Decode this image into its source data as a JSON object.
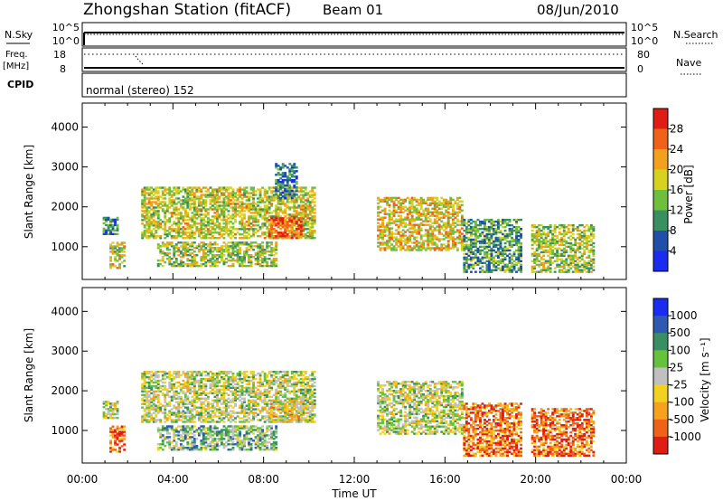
{
  "header": {
    "station": "Zhongshan Station (fitACF)",
    "beam": "Beam 01",
    "date": "08/Jun/2010"
  },
  "strips": {
    "nsky": {
      "label": "N.Sky",
      "ticks": [
        "10^5",
        "10^0"
      ],
      "right_label": "N.Search",
      "right_ticks": [
        "10^5",
        "10^0"
      ]
    },
    "freq": {
      "label_1": "Freq.",
      "label_2": "[MHz]",
      "ticks": [
        "18",
        "8"
      ],
      "right_label": "Nave",
      "right_ticks": [
        "80",
        "0"
      ]
    },
    "cpid": {
      "label": "CPID",
      "text": "normal (stereo) 152"
    }
  },
  "colors": {
    "power": [
      "#1a2cf0",
      "#1f4fa8",
      "#3a8f62",
      "#6fbf3f",
      "#d6d21e",
      "#f2a11c",
      "#f0621a",
      "#e01d14"
    ],
    "velocity": [
      "#e01d14",
      "#f0621a",
      "#f6a21c",
      "#f2d21e",
      "#c0c0c0",
      "#66c23a",
      "#3a8f62",
      "#2f58b0",
      "#1a2cf0"
    ]
  },
  "chart_data": [
    {
      "type": "heatmap",
      "title": "Power",
      "ylabel": "Slant Range [km]",
      "xlabel": "",
      "xlim": [
        "00:00",
        "00:00"
      ],
      "ylim": [
        180,
        4600
      ],
      "x_ticks": [
        "00:00",
        "04:00",
        "08:00",
        "12:00",
        "16:00",
        "20:00",
        "00:00"
      ],
      "y_ticks": [
        "1000",
        "2000",
        "3000",
        "4000"
      ],
      "colorbar": {
        "label": "Power [dB]",
        "ticks": [
          "4",
          "8",
          "12",
          "16",
          "20",
          "24",
          "28"
        ]
      },
      "regions": [
        {
          "t0": 0.9,
          "t1": 1.6,
          "r0": 1300,
          "r1": 1750,
          "level": 0.3
        },
        {
          "t0": 1.2,
          "t1": 1.9,
          "r0": 450,
          "r1": 1100,
          "level": 0.55
        },
        {
          "t0": 2.6,
          "t1": 10.2,
          "r0": 1200,
          "r1": 2500,
          "level": 0.55
        },
        {
          "t0": 3.3,
          "t1": 8.5,
          "r0": 500,
          "r1": 1100,
          "level": 0.5
        },
        {
          "t0": 8.2,
          "t1": 9.6,
          "r0": 1200,
          "r1": 1700,
          "level": 0.85
        },
        {
          "t0": 8.5,
          "t1": 9.4,
          "r0": 2200,
          "r1": 3100,
          "level": 0.25
        },
        {
          "t0": 13.0,
          "t1": 16.8,
          "r0": 900,
          "r1": 2250,
          "level": 0.6
        },
        {
          "t0": 16.8,
          "t1": 19.4,
          "r0": 350,
          "r1": 1700,
          "level": 0.35
        },
        {
          "t0": 19.8,
          "t1": 22.6,
          "r0": 350,
          "r1": 1550,
          "level": 0.5
        }
      ]
    },
    {
      "type": "heatmap",
      "title": "Velocity",
      "ylabel": "Slant Range [km]",
      "xlabel": "Time UT",
      "xlim": [
        "00:00",
        "00:00"
      ],
      "ylim": [
        180,
        4600
      ],
      "x_ticks": [
        "00:00",
        "04:00",
        "08:00",
        "12:00",
        "16:00",
        "20:00",
        "00:00"
      ],
      "y_ticks": [
        "1000",
        "2000",
        "3000",
        "4000"
      ],
      "colorbar": {
        "label": "Velocity [m s⁻¹]",
        "ticks": [
          "1000",
          "500",
          "100",
          "25",
          "-25",
          "-100",
          "-500",
          "-1000"
        ]
      },
      "regions": [
        {
          "t0": 0.9,
          "t1": 1.6,
          "r0": 1300,
          "r1": 1750,
          "level": 0.5
        },
        {
          "t0": 1.2,
          "t1": 1.9,
          "r0": 450,
          "r1": 1100,
          "level": 0.15
        },
        {
          "t0": 2.6,
          "t1": 10.2,
          "r0": 1200,
          "r1": 2500,
          "level": 0.5
        },
        {
          "t0": 3.3,
          "t1": 8.5,
          "r0": 500,
          "r1": 1100,
          "level": 0.62
        },
        {
          "t0": 8.2,
          "t1": 9.6,
          "r0": 1200,
          "r1": 1700,
          "level": 0.42
        },
        {
          "t0": 13.0,
          "t1": 16.8,
          "r0": 900,
          "r1": 2250,
          "level": 0.5
        },
        {
          "t0": 16.8,
          "t1": 19.4,
          "r0": 350,
          "r1": 1700,
          "level": 0.2
        },
        {
          "t0": 19.8,
          "t1": 22.6,
          "r0": 350,
          "r1": 1550,
          "level": 0.18
        }
      ]
    }
  ],
  "footer": {
    "xlabel": "Time UT"
  }
}
